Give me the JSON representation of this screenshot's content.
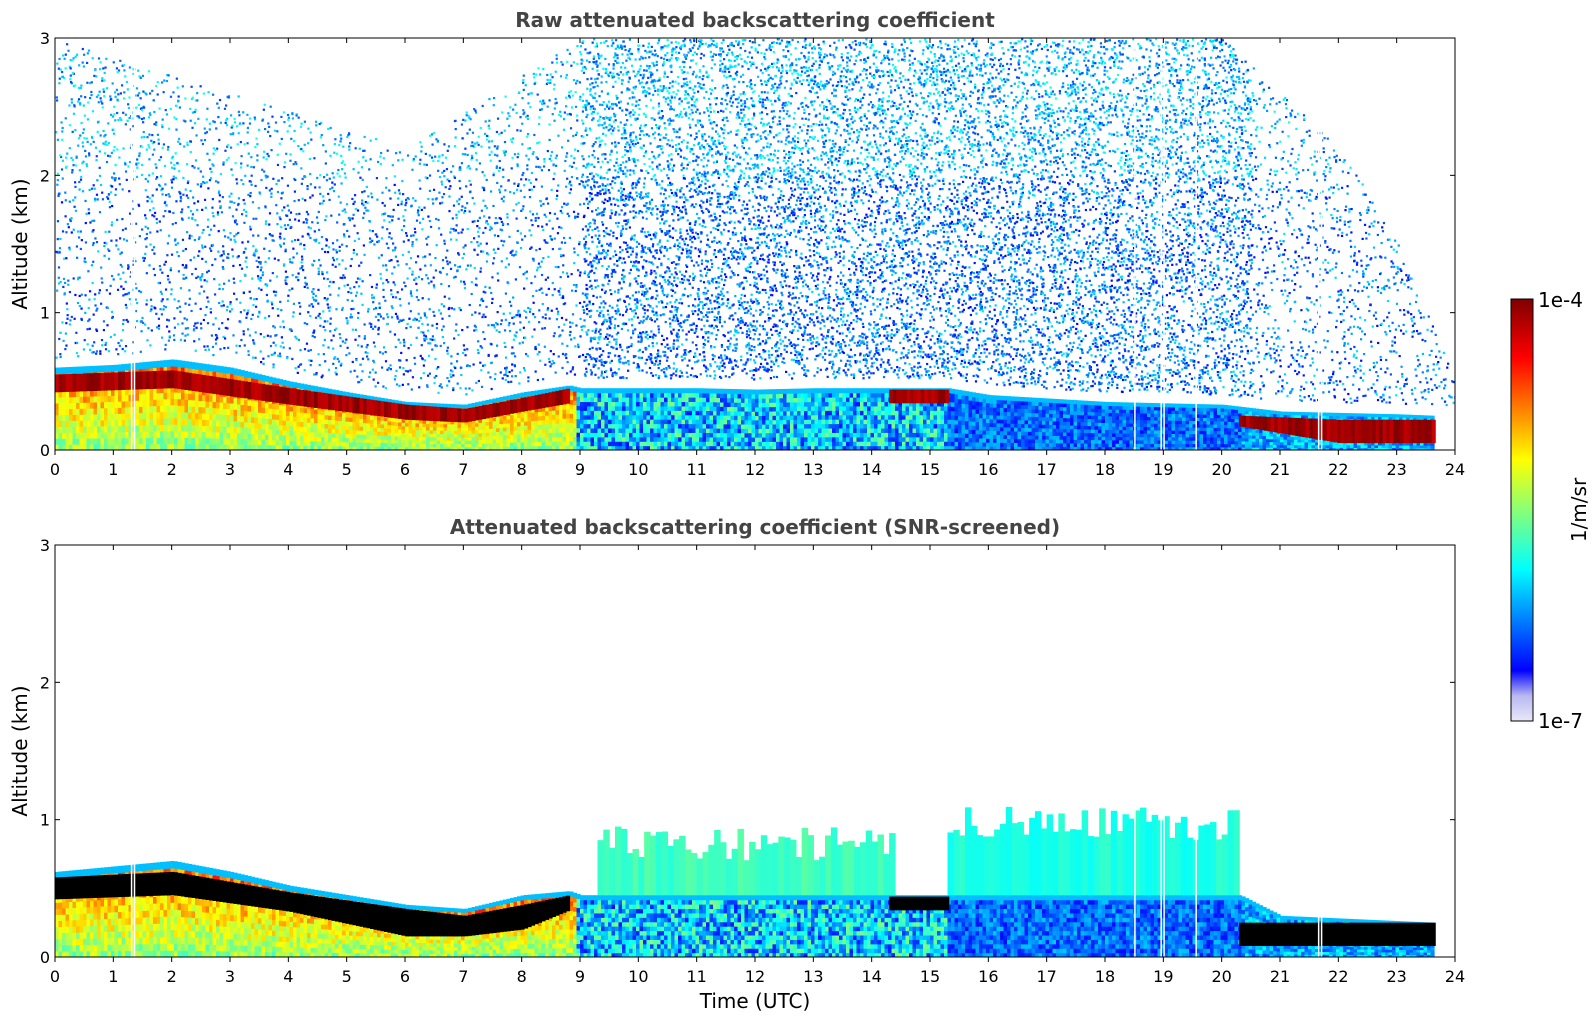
{
  "chart_data": [
    {
      "type": "heatmap",
      "title": "Raw attenuated backscattering coefficient",
      "xlabel": "",
      "ylabel": "Altitude (km)",
      "xlim": [
        0,
        24
      ],
      "ylim": [
        0,
        3
      ],
      "x_ticks": [
        "0",
        "1",
        "2",
        "3",
        "4",
        "5",
        "6",
        "7",
        "8",
        "9",
        "10",
        "11",
        "12",
        "13",
        "14",
        "15",
        "16",
        "17",
        "18",
        "19",
        "20",
        "21",
        "22",
        "23",
        "24"
      ],
      "y_ticks": [
        "0",
        "1",
        "2",
        "3"
      ],
      "grid": false,
      "layers": {
        "aerosol_layer_top_km": [
          [
            0,
            0.6
          ],
          [
            1,
            0.62
          ],
          [
            2,
            0.66
          ],
          [
            3,
            0.6
          ],
          [
            4,
            0.5
          ],
          [
            5,
            0.42
          ],
          [
            6,
            0.35
          ],
          [
            7,
            0.33
          ],
          [
            8,
            0.42
          ],
          [
            8.8,
            0.47
          ],
          [
            9,
            0.45
          ],
          [
            10,
            0.45
          ],
          [
            11,
            0.45
          ],
          [
            12,
            0.44
          ],
          [
            13,
            0.45
          ],
          [
            14,
            0.45
          ],
          [
            15,
            0.45
          ],
          [
            15.3,
            0.45
          ],
          [
            16,
            0.4
          ],
          [
            18,
            0.35
          ],
          [
            20,
            0.33
          ],
          [
            21,
            0.28
          ],
          [
            22,
            0.27
          ],
          [
            23,
            0.26
          ],
          [
            23.6,
            0.25
          ]
        ],
        "dense_band": [
          {
            "t_start": 0,
            "t_end": 8.8,
            "top_km": [
              [
                0,
                0.55
              ],
              [
                2,
                0.58
              ],
              [
                4,
                0.45
              ],
              [
                6,
                0.33
              ],
              [
                7,
                0.3
              ],
              [
                8,
                0.38
              ],
              [
                8.8,
                0.45
              ]
            ],
            "bottom_km": [
              [
                0,
                0.42
              ],
              [
                2,
                0.45
              ],
              [
                4,
                0.33
              ],
              [
                6,
                0.22
              ],
              [
                7,
                0.2
              ],
              [
                8,
                0.28
              ],
              [
                8.8,
                0.34
              ]
            ],
            "level_log10": -4.0
          },
          {
            "t_start": 14.3,
            "t_end": 15.3,
            "top_km": 0.44,
            "bottom_km": 0.34,
            "level_log10": -4.0
          },
          {
            "t_start": 20.3,
            "t_end": 23.6,
            "top_km": [
              [
                20.3,
                0.25
              ],
              [
                22,
                0.22
              ],
              [
                23.6,
                0.22
              ]
            ],
            "bottom_km": [
              [
                20.3,
                0.17
              ],
              [
                22,
                0.05
              ],
              [
                23.6,
                0.05
              ]
            ],
            "level_log10": -4.0
          }
        ],
        "noise_top_km": [
          [
            0,
            3
          ],
          [
            6,
            2.2
          ],
          [
            9,
            3
          ],
          [
            20,
            3
          ],
          [
            21,
            2.6
          ],
          [
            22,
            2.2
          ],
          [
            23,
            1.5
          ],
          [
            24,
            0.5
          ]
        ],
        "gaps_utc": [
          1.3,
          1.35,
          18.5,
          18.95,
          19.0,
          19.55,
          21.65,
          21.7
        ]
      }
    },
    {
      "type": "heatmap",
      "title": "Attenuated backscattering coefficient (SNR-screened)",
      "xlabel": "Time (UTC)",
      "ylabel": "Altitude (km)",
      "xlim": [
        0,
        24
      ],
      "ylim": [
        0,
        3
      ],
      "x_ticks": [
        "0",
        "1",
        "2",
        "3",
        "4",
        "5",
        "6",
        "7",
        "8",
        "9",
        "10",
        "11",
        "12",
        "13",
        "14",
        "15",
        "16",
        "17",
        "18",
        "19",
        "20",
        "21",
        "22",
        "23",
        "24"
      ],
      "y_ticks": [
        "0",
        "1",
        "2",
        "3"
      ],
      "grid": false,
      "layers": {
        "aerosol_layer_top_km": [
          [
            0,
            0.62
          ],
          [
            1,
            0.66
          ],
          [
            2,
            0.7
          ],
          [
            3,
            0.62
          ],
          [
            4,
            0.52
          ],
          [
            5,
            0.45
          ],
          [
            6,
            0.38
          ],
          [
            7,
            0.35
          ],
          [
            8,
            0.45
          ],
          [
            8.8,
            0.48
          ],
          [
            9,
            0.45
          ],
          [
            15.3,
            0.45
          ],
          [
            20.3,
            0.45
          ],
          [
            21,
            0.3
          ],
          [
            23.6,
            0.25
          ]
        ],
        "saturated_black_band": [
          {
            "t_start": 0,
            "t_end": 8.8,
            "top_km": [
              [
                0,
                0.58
              ],
              [
                2,
                0.62
              ],
              [
                4,
                0.47
              ],
              [
                6,
                0.35
              ],
              [
                7,
                0.3
              ],
              [
                8,
                0.38
              ],
              [
                8.8,
                0.45
              ]
            ],
            "bottom_km": [
              [
                0,
                0.42
              ],
              [
                2,
                0.45
              ],
              [
                4,
                0.33
              ],
              [
                6,
                0.15
              ],
              [
                7,
                0.15
              ],
              [
                8,
                0.2
              ],
              [
                8.8,
                0.34
              ]
            ]
          },
          {
            "t_start": 14.3,
            "t_end": 15.3,
            "top_km": 0.44,
            "bottom_km": 0.34
          },
          {
            "t_start": 20.3,
            "t_end": 23.6,
            "top_km": 0.25,
            "bottom_km": 0.08
          }
        ],
        "screened_cloud_blocks": [
          {
            "t_start": 9.3,
            "t_end": 14.3,
            "top_km": 0.95,
            "bottom_km": 0.45,
            "level_log10": -5.8
          },
          {
            "t_start": 15.3,
            "t_end": 20.3,
            "top_km": 1.1,
            "bottom_km": 0.45,
            "level_log10": -5.9
          }
        ],
        "gaps_utc": [
          1.3,
          1.35,
          18.5,
          18.95,
          19.0,
          19.55,
          21.65,
          21.7
        ]
      }
    }
  ],
  "colorbar": {
    "label": "1/m/sr",
    "max_label": "1e-4",
    "min_label": "1e-7",
    "scale": "log",
    "range_log10": [
      -7,
      -4
    ],
    "colormap": [
      "#e8e8f8",
      "#0000ff",
      "#00ffff",
      "#ffff00",
      "#ff0000",
      "#7f0000"
    ]
  }
}
